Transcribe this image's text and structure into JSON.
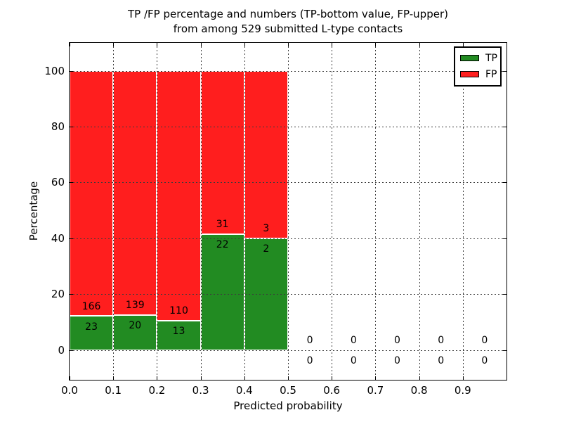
{
  "figure": {
    "background": "#ffffff"
  },
  "chart_data": {
    "type": "bar",
    "stacked": true,
    "title": "TP /FP percentage and numbers (TP-bottom value, FP-upper) from among 529 submitted L-type contacts",
    "title_lines": [
      "TP /FP percentage and numbers (TP-bottom value, FP-upper)",
      "from among 529 submitted L-type contacts"
    ],
    "xlabel": "Predicted probability",
    "ylabel": "Percentage",
    "xlim": [
      0.0,
      1.0
    ],
    "ylim": [
      -10.7,
      110
    ],
    "grid": true,
    "grid_style": "dotted",
    "legend_position": "upper right",
    "total_submitted": 529,
    "bin_edges": [
      0.0,
      0.1,
      0.2,
      0.3,
      0.4,
      0.5,
      0.6,
      0.7,
      0.8,
      0.9,
      1.0
    ],
    "x_ticks": [
      {
        "label": "0.0",
        "value": 0.0
      },
      {
        "label": "0.1",
        "value": 0.1
      },
      {
        "label": "0.2",
        "value": 0.2
      },
      {
        "label": "0.3",
        "value": 0.3
      },
      {
        "label": "0.4",
        "value": 0.4
      },
      {
        "label": "0.5",
        "value": 0.5
      },
      {
        "label": "0.6",
        "value": 0.6
      },
      {
        "label": "0.7",
        "value": 0.7
      },
      {
        "label": "0.8",
        "value": 0.8
      },
      {
        "label": "0.9",
        "value": 0.9
      }
    ],
    "y_ticks": [
      {
        "label": "0",
        "value": 0
      },
      {
        "label": "20",
        "value": 20
      },
      {
        "label": "40",
        "value": 40
      },
      {
        "label": "60",
        "value": 60
      },
      {
        "label": "80",
        "value": 80
      },
      {
        "label": "100",
        "value": 100
      }
    ],
    "series": [
      {
        "name": "TP",
        "color": "#228B22",
        "counts": [
          23,
          20,
          13,
          22,
          2,
          0,
          0,
          0,
          0,
          0
        ],
        "percent": [
          12.17,
          12.58,
          10.57,
          41.51,
          40.0,
          0,
          0,
          0,
          0,
          0
        ]
      },
      {
        "name": "FP",
        "color": "#FF1E1E",
        "counts": [
          166,
          139,
          110,
          31,
          3,
          0,
          0,
          0,
          0,
          0
        ],
        "percent": [
          87.83,
          87.42,
          89.43,
          58.49,
          60.0,
          0,
          0,
          0,
          0,
          0
        ]
      }
    ],
    "bar_edge_color": "#ffffff",
    "label_note": "FP count printed above the TP/FP boundary, TP count printed below it"
  }
}
